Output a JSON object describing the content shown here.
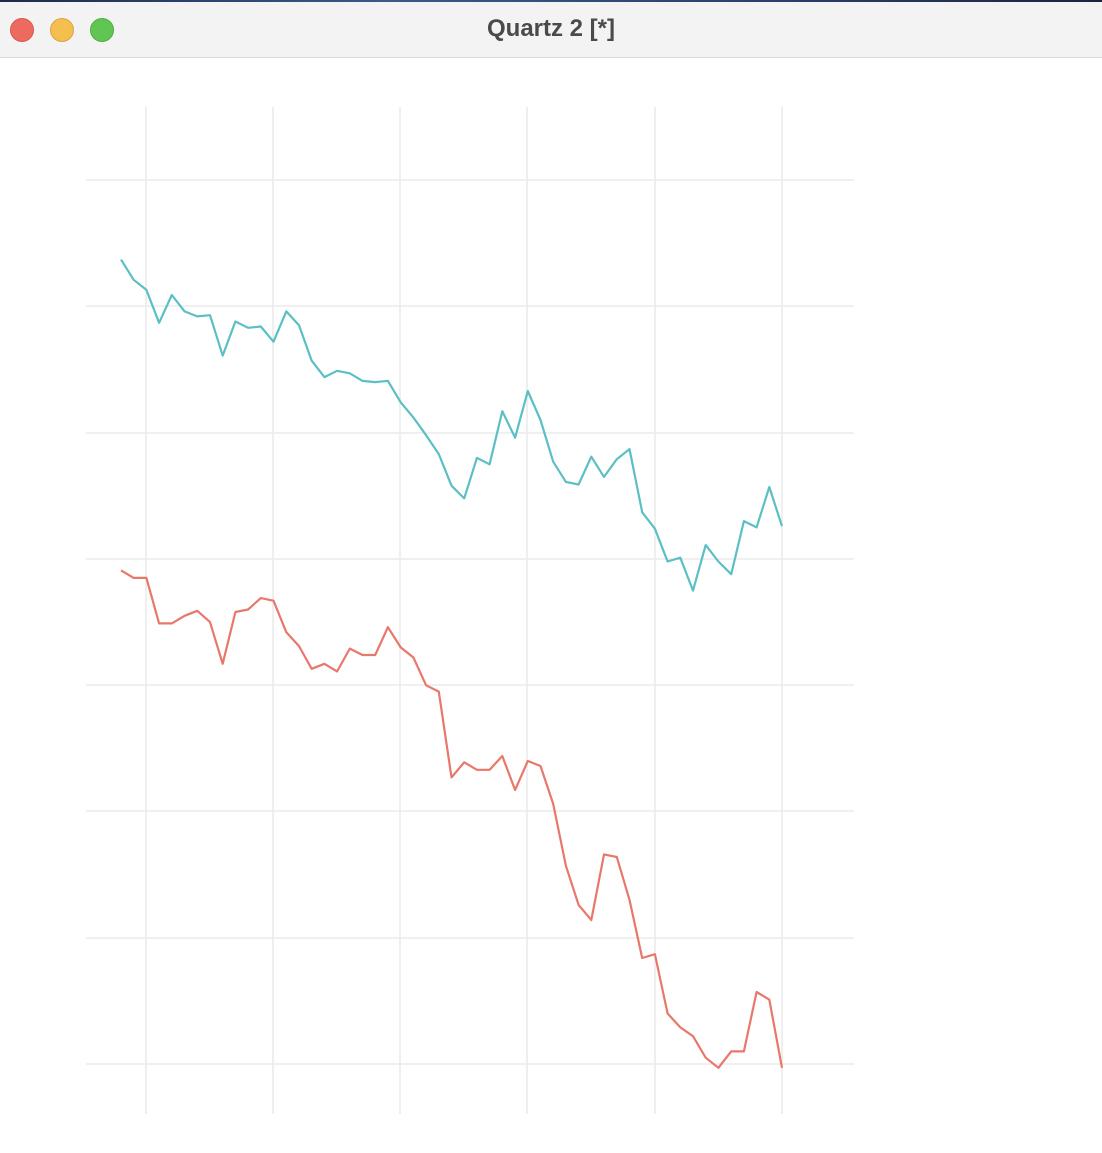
{
  "window": {
    "title": "Quartz 2 [*]",
    "buttons": [
      "close",
      "minimize",
      "zoom"
    ]
  },
  "colors": {
    "series_top": "#5bbfc3",
    "series_bottom": "#e8776c",
    "grid": "#ebebeb"
  },
  "chart_data": [
    {
      "type": "line",
      "title": "",
      "xlabel": "",
      "ylabel": "",
      "grid": true,
      "x_gridlines": 6,
      "y_gridlines": 4,
      "series": [
        {
          "color": "#5bbfc3",
          "values": [
            9.37,
            9.21,
            9.13,
            8.87,
            9.09,
            8.96,
            8.92,
            8.93,
            8.61,
            8.88,
            8.83,
            8.84,
            8.72,
            8.96,
            8.85,
            8.57,
            8.44,
            8.49,
            8.47,
            8.41,
            8.4,
            8.41,
            8.24,
            8.12,
            7.98,
            7.83,
            7.58,
            7.48,
            7.8,
            7.75,
            8.17,
            7.96,
            8.33,
            8.1,
            7.77,
            7.61,
            7.59,
            7.81,
            7.65,
            7.79,
            7.87,
            7.37,
            7.24,
            6.98,
            7.01,
            6.75,
            7.11,
            6.98,
            6.88,
            7.3,
            7.25,
            7.57,
            7.26
          ]
        }
      ]
    },
    {
      "type": "line",
      "title": "",
      "xlabel": "",
      "ylabel": "",
      "grid": true,
      "x_gridlines": 6,
      "y_gridlines": 5,
      "series": [
        {
          "color": "#e8776c",
          "values": [
            3.91,
            3.85,
            3.85,
            3.49,
            3.49,
            3.55,
            3.59,
            3.5,
            3.17,
            3.58,
            3.6,
            3.69,
            3.67,
            3.42,
            3.31,
            3.13,
            3.17,
            3.11,
            3.29,
            3.24,
            3.24,
            3.46,
            3.3,
            3.22,
            3.0,
            2.95,
            2.27,
            2.39,
            2.33,
            2.33,
            2.44,
            2.17,
            2.4,
            2.36,
            2.06,
            1.57,
            1.26,
            1.14,
            1.66,
            1.64,
            1.3,
            0.84,
            0.87,
            0.4,
            0.29,
            0.22,
            0.05,
            -0.03,
            0.1,
            0.1,
            0.57,
            0.51,
            -0.03
          ]
        }
      ]
    }
  ]
}
